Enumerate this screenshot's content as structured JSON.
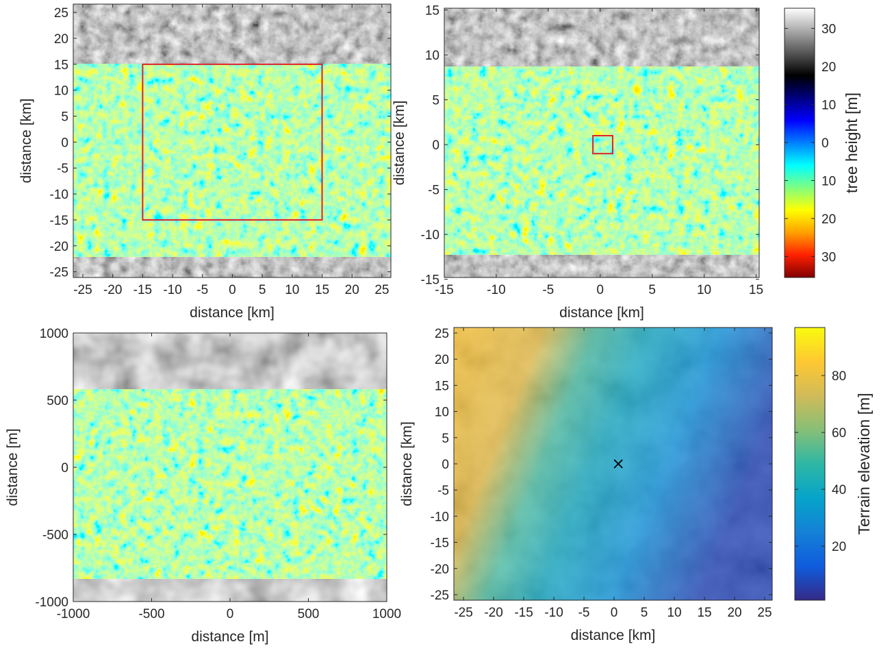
{
  "chart_data": [
    {
      "type": "image",
      "xlabel": "distance [km]",
      "ylabel": "distance [km]",
      "xlim": [
        -26.6,
        26.5
      ],
      "ylim": [
        -26.1,
        26.6
      ],
      "xticks": [
        -25,
        -20,
        -15,
        -10,
        -5,
        0,
        5,
        10,
        15,
        20,
        25
      ],
      "yticks": [
        -25,
        -20,
        -15,
        -10,
        -5,
        0,
        5,
        10,
        15,
        20,
        25
      ],
      "box": {
        "x": [
          -15,
          15
        ],
        "y": [
          -15,
          15
        ],
        "color": "#e0202a"
      }
    },
    {
      "type": "image",
      "xlabel": "distance [km]",
      "ylabel": "distance [km]",
      "xlim": [
        -15,
        15.3
      ],
      "ylim": [
        -14.8,
        15.2
      ],
      "xticks": [
        -15,
        -10,
        -5,
        0,
        5,
        10,
        15
      ],
      "yticks": [
        -15,
        -10,
        -5,
        0,
        5,
        10,
        15
      ],
      "box": {
        "x": [
          -0.7,
          1.2
        ],
        "y": [
          -1,
          1
        ],
        "color": "#e0202a"
      }
    },
    {
      "type": "colorbar",
      "label": "tree height [m]",
      "ylim": [
        -35.5,
        35.3
      ],
      "yticks": [
        {
          "value": -30,
          "label": "30"
        },
        {
          "value": -20,
          "label": "20"
        },
        {
          "value": -10,
          "label": "10"
        },
        0,
        10,
        20,
        30
      ],
      "colors": [
        "#800000",
        "#ff2000",
        "#ffa000",
        "#ffff00",
        "#80ff80",
        "#00ffff",
        "#0080ff",
        "#0000ff",
        "#000080",
        "#000000",
        "#555555",
        "#aaaaaa",
        "#ffffff"
      ]
    },
    {
      "type": "image",
      "xlabel": "distance [m]",
      "ylabel": "distance [m]",
      "xlim": [
        -1000,
        1000
      ],
      "ylim": [
        -1000,
        1000
      ],
      "xticks": [
        -1000,
        -500,
        0,
        500,
        1000
      ],
      "yticks": [
        -1000,
        -500,
        0,
        500,
        1000
      ]
    },
    {
      "type": "image",
      "xlabel": "distance [km]",
      "ylabel": "distance [km]",
      "xlim": [
        -26.6,
        26.25
      ],
      "ylim": [
        -26.05,
        26.05
      ],
      "xticks": [
        -25,
        -20,
        -15,
        -10,
        -5,
        0,
        5,
        10,
        15,
        20,
        25
      ],
      "yticks": [
        -25,
        -20,
        -15,
        -10,
        -5,
        0,
        5,
        10,
        15,
        20,
        25
      ],
      "markers": {
        "x": [
          0.7
        ],
        "y": [
          0
        ],
        "color": "#000000"
      }
    },
    {
      "type": "colorbar",
      "label": "Terrain elevation [m]",
      "ylim": [
        1,
        96.9
      ],
      "yticks": [
        20,
        40,
        60,
        80
      ],
      "colors": [
        "#352a87",
        "#0f5cdd",
        "#1481d6",
        "#06a4ca",
        "#2eb7a4",
        "#87bf77",
        "#d1bb59",
        "#fec832",
        "#f9fb0e"
      ]
    }
  ]
}
